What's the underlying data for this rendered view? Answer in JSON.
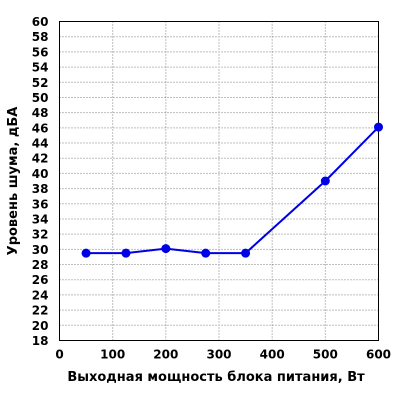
{
  "chart_data": {
    "type": "line",
    "title": "",
    "xlabel": "Выходная мощность блока питания, Вт",
    "ylabel": "Уровень шума, дБА",
    "xlim": [
      0,
      600
    ],
    "ylim": [
      18,
      60
    ],
    "x_ticks": [
      "0",
      "100",
      "200",
      "300",
      "400",
      "500",
      "600"
    ],
    "y_ticks": [
      "18",
      "20",
      "22",
      "24",
      "26",
      "28",
      "30",
      "32",
      "34",
      "36",
      "38",
      "40",
      "42",
      "44",
      "46",
      "48",
      "50",
      "52",
      "54",
      "56",
      "58",
      "60"
    ],
    "grid": true,
    "legend": "none",
    "series": [
      {
        "color": "#0000e6",
        "x": [
          50,
          125,
          200,
          275,
          350,
          500,
          600
        ],
        "y": [
          29.5,
          29.5,
          30.1,
          29.5,
          29.5,
          39,
          46.1
        ]
      }
    ]
  }
}
